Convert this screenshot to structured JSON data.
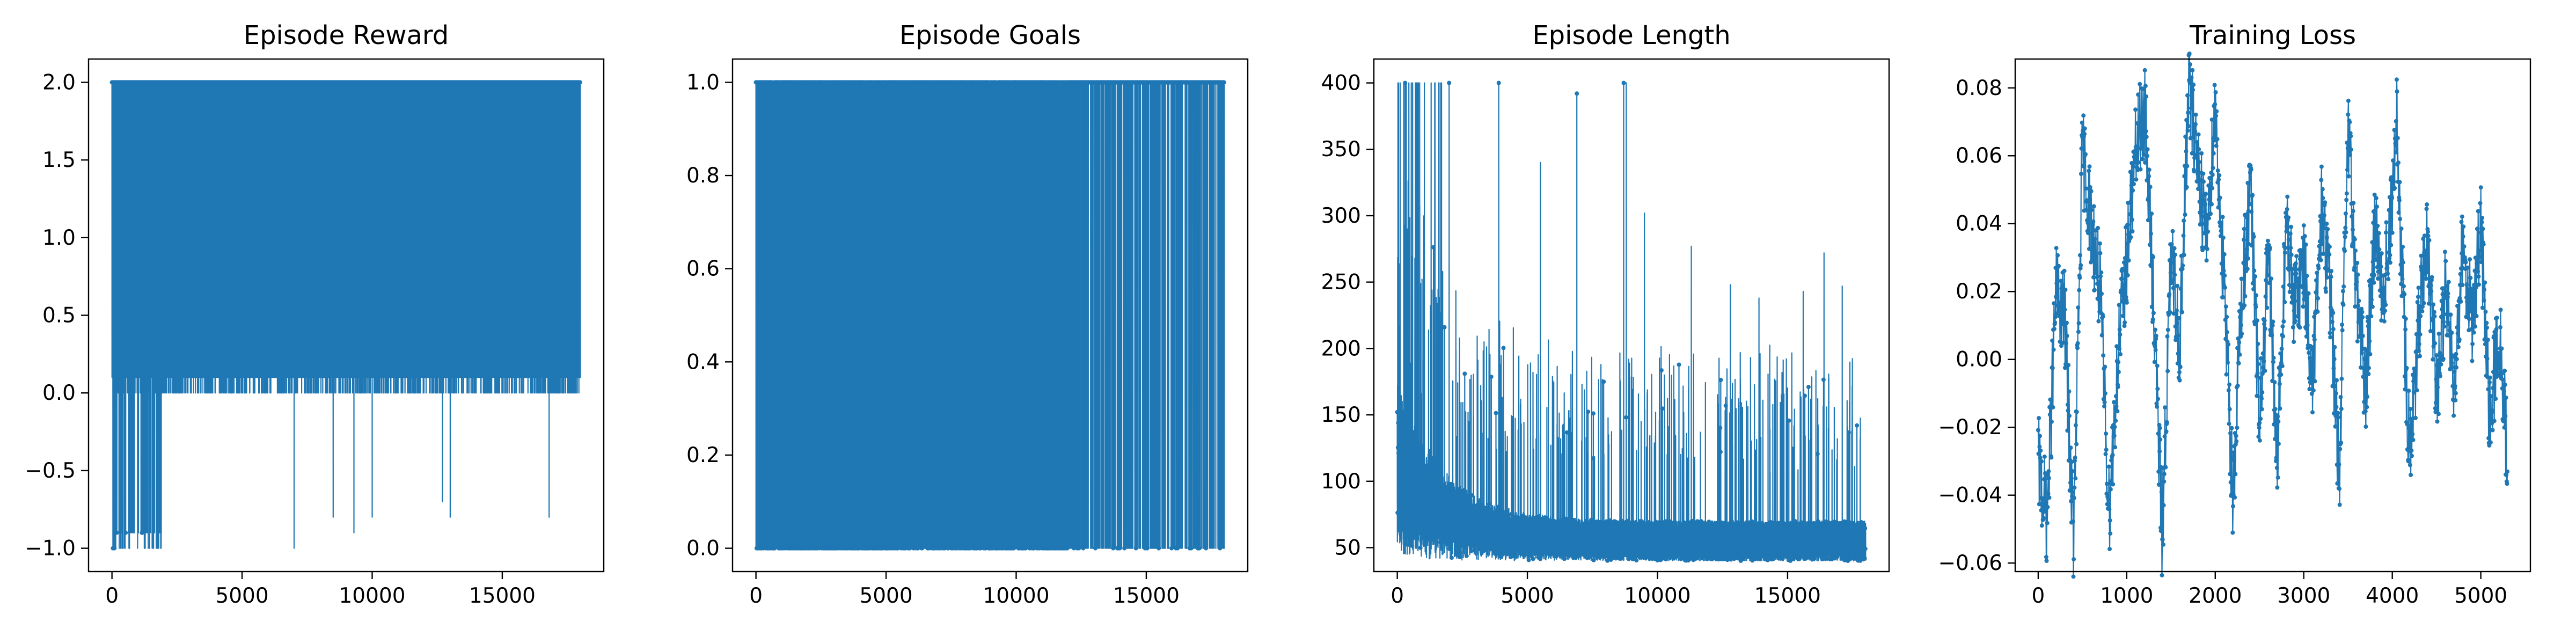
{
  "colors": {
    "series": "#1f77b4",
    "axis": "#000000",
    "background": "#ffffff"
  },
  "chart_data": [
    {
      "type": "line",
      "title": "Episode Reward",
      "xlabel": "",
      "ylabel": "",
      "xlim": [
        -900,
        18900
      ],
      "ylim": [
        -1.15,
        2.15
      ],
      "xticks": [
        0,
        5000,
        10000,
        15000
      ],
      "xtick_labels": [
        "0",
        "5000",
        "10000",
        "15000"
      ],
      "yticks": [
        -1.0,
        -0.5,
        0.0,
        0.5,
        1.0,
        1.5,
        2.0
      ],
      "ytick_labels": [
        "−1.0",
        "−0.5",
        "0.0",
        "0.5",
        "1.0",
        "1.5",
        "2.0"
      ],
      "grid": false,
      "series": [
        {
          "color": "#1f77b4",
          "generator": "reward",
          "n_points": 18000,
          "x_start": 0,
          "x_end": 18000,
          "notes": "dense oscillation between 0.1 and 2.0 across whole range; early episodes drop to -0.9/-1.0",
          "dips": [
            {
              "x": 7000,
              "y": -1.0
            },
            {
              "x": 8500,
              "y": -0.8
            },
            {
              "x": 9300,
              "y": -0.9
            },
            {
              "x": 10000,
              "y": -0.8
            },
            {
              "x": 12700,
              "y": -0.7
            },
            {
              "x": 13000,
              "y": -0.8
            },
            {
              "x": 16800,
              "y": -0.8
            }
          ],
          "partial_peaks": [
            {
              "x": 9600,
              "y": 0.98
            },
            {
              "x": 10300,
              "y": 0.98
            },
            {
              "x": 12000,
              "y": 0.78
            },
            {
              "x": 13500,
              "y": 0.98
            },
            {
              "x": 14500,
              "y": 0.98
            },
            {
              "x": 15300,
              "y": 0.98
            },
            {
              "x": 16700,
              "y": 0.98
            },
            {
              "x": 17200,
              "y": 0.98
            }
          ]
        }
      ]
    },
    {
      "type": "line",
      "title": "Episode Goals",
      "xlabel": "",
      "ylabel": "",
      "xlim": [
        -900,
        18900
      ],
      "ylim": [
        -0.05,
        1.05
      ],
      "xticks": [
        0,
        5000,
        10000,
        15000
      ],
      "xtick_labels": [
        "0",
        "5000",
        "10000",
        "15000"
      ],
      "yticks": [
        0.0,
        0.2,
        0.4,
        0.6,
        0.8,
        1.0
      ],
      "ytick_labels": [
        "0.0",
        "0.2",
        "0.4",
        "0.6",
        "0.8",
        "1.0"
      ],
      "grid": false,
      "series": [
        {
          "color": "#1f77b4",
          "generator": "binary",
          "n_points": 18000,
          "x_start": 0,
          "x_end": 18000,
          "notes": "binary 0/1 per episode; zeros become sparser after ~12000"
        }
      ]
    },
    {
      "type": "line",
      "title": "Episode Length",
      "xlabel": "",
      "ylabel": "",
      "xlim": [
        -900,
        18900
      ],
      "ylim": [
        32,
        418
      ],
      "xticks": [
        0,
        5000,
        10000,
        15000
      ],
      "xtick_labels": [
        "0",
        "5000",
        "10000",
        "15000"
      ],
      "yticks": [
        50,
        100,
        150,
        200,
        250,
        300,
        350,
        400
      ],
      "ytick_labels": [
        "50",
        "100",
        "150",
        "200",
        "250",
        "300",
        "350",
        "400"
      ],
      "grid": false,
      "series": [
        {
          "color": "#1f77b4",
          "generator": "length",
          "n_points": 18000,
          "x_start": 0,
          "x_end": 18000,
          "notes": "starts high (up to 400 cap) decaying to a band of ~40-120 with sporadic spikes",
          "spikes": [
            {
              "x": 300,
              "y": 400
            },
            {
              "x": 700,
              "y": 400
            },
            {
              "x": 1300,
              "y": 400
            },
            {
              "x": 1700,
              "y": 400
            },
            {
              "x": 3900,
              "y": 400
            },
            {
              "x": 8700,
              "y": 400
            },
            {
              "x": 8800,
              "y": 400
            },
            {
              "x": 6900,
              "y": 392
            },
            {
              "x": 5500,
              "y": 340
            },
            {
              "x": 9500,
              "y": 302
            },
            {
              "x": 11300,
              "y": 277
            },
            {
              "x": 16400,
              "y": 272
            },
            {
              "x": 12800,
              "y": 248
            },
            {
              "x": 15600,
              "y": 243
            },
            {
              "x": 17100,
              "y": 247
            },
            {
              "x": 13900,
              "y": 238
            }
          ]
        }
      ]
    },
    {
      "type": "line",
      "title": "Training Loss",
      "xlabel": "",
      "ylabel": "",
      "xlim": [
        -260,
        5560
      ],
      "ylim": [
        -0.0625,
        0.0885
      ],
      "xticks": [
        0,
        1000,
        2000,
        3000,
        4000,
        5000
      ],
      "xtick_labels": [
        "0",
        "1000",
        "2000",
        "3000",
        "4000",
        "5000"
      ],
      "yticks": [
        -0.06,
        -0.04,
        -0.02,
        0.0,
        0.02,
        0.04,
        0.06,
        0.08
      ],
      "ytick_labels": [
        "−0.06",
        "−0.04",
        "−0.02",
        "0.00",
        "0.02",
        "0.04",
        "0.06",
        "0.08"
      ],
      "grid": false,
      "series": [
        {
          "color": "#1f77b4",
          "generator": "loss",
          "n_points": 1400,
          "x_start": 0,
          "x_end": 5300,
          "anchors": [
            [
              0,
              -0.03
            ],
            [
              100,
              -0.047
            ],
            [
              200,
              0.02
            ],
            [
              300,
              0.012
            ],
            [
              400,
              -0.054
            ],
            [
              500,
              0.062
            ],
            [
              600,
              0.04
            ],
            [
              700,
              0.02
            ],
            [
              800,
              -0.045
            ],
            [
              900,
              0.0
            ],
            [
              1000,
              0.03
            ],
            [
              1100,
              0.06
            ],
            [
              1200,
              0.075
            ],
            [
              1300,
              0.02
            ],
            [
              1400,
              -0.052
            ],
            [
              1500,
              0.03
            ],
            [
              1600,
              0.005
            ],
            [
              1700,
              0.08
            ],
            [
              1800,
              0.06
            ],
            [
              1900,
              0.035
            ],
            [
              2000,
              0.075
            ],
            [
              2100,
              0.02
            ],
            [
              2200,
              -0.04
            ],
            [
              2300,
              0.02
            ],
            [
              2400,
              0.05
            ],
            [
              2500,
              -0.02
            ],
            [
              2600,
              0.03
            ],
            [
              2700,
              -0.03
            ],
            [
              2800,
              0.04
            ],
            [
              2900,
              0.015
            ],
            [
              3000,
              0.03
            ],
            [
              3100,
              -0.01
            ],
            [
              3200,
              0.045
            ],
            [
              3300,
              0.02
            ],
            [
              3400,
              -0.035
            ],
            [
              3500,
              0.067
            ],
            [
              3600,
              0.02
            ],
            [
              3700,
              -0.01
            ],
            [
              3800,
              0.04
            ],
            [
              3900,
              0.02
            ],
            [
              4000,
              0.045
            ],
            [
              4050,
              0.07
            ],
            [
              4100,
              0.03
            ],
            [
              4200,
              -0.03
            ],
            [
              4300,
              0.01
            ],
            [
              4400,
              0.035
            ],
            [
              4500,
              -0.01
            ],
            [
              4600,
              0.02
            ],
            [
              4700,
              -0.005
            ],
            [
              4800,
              0.035
            ],
            [
              4900,
              0.01
            ],
            [
              5000,
              0.04
            ],
            [
              5100,
              -0.02
            ],
            [
              5200,
              0.01
            ],
            [
              5300,
              -0.028
            ]
          ]
        }
      ]
    }
  ]
}
